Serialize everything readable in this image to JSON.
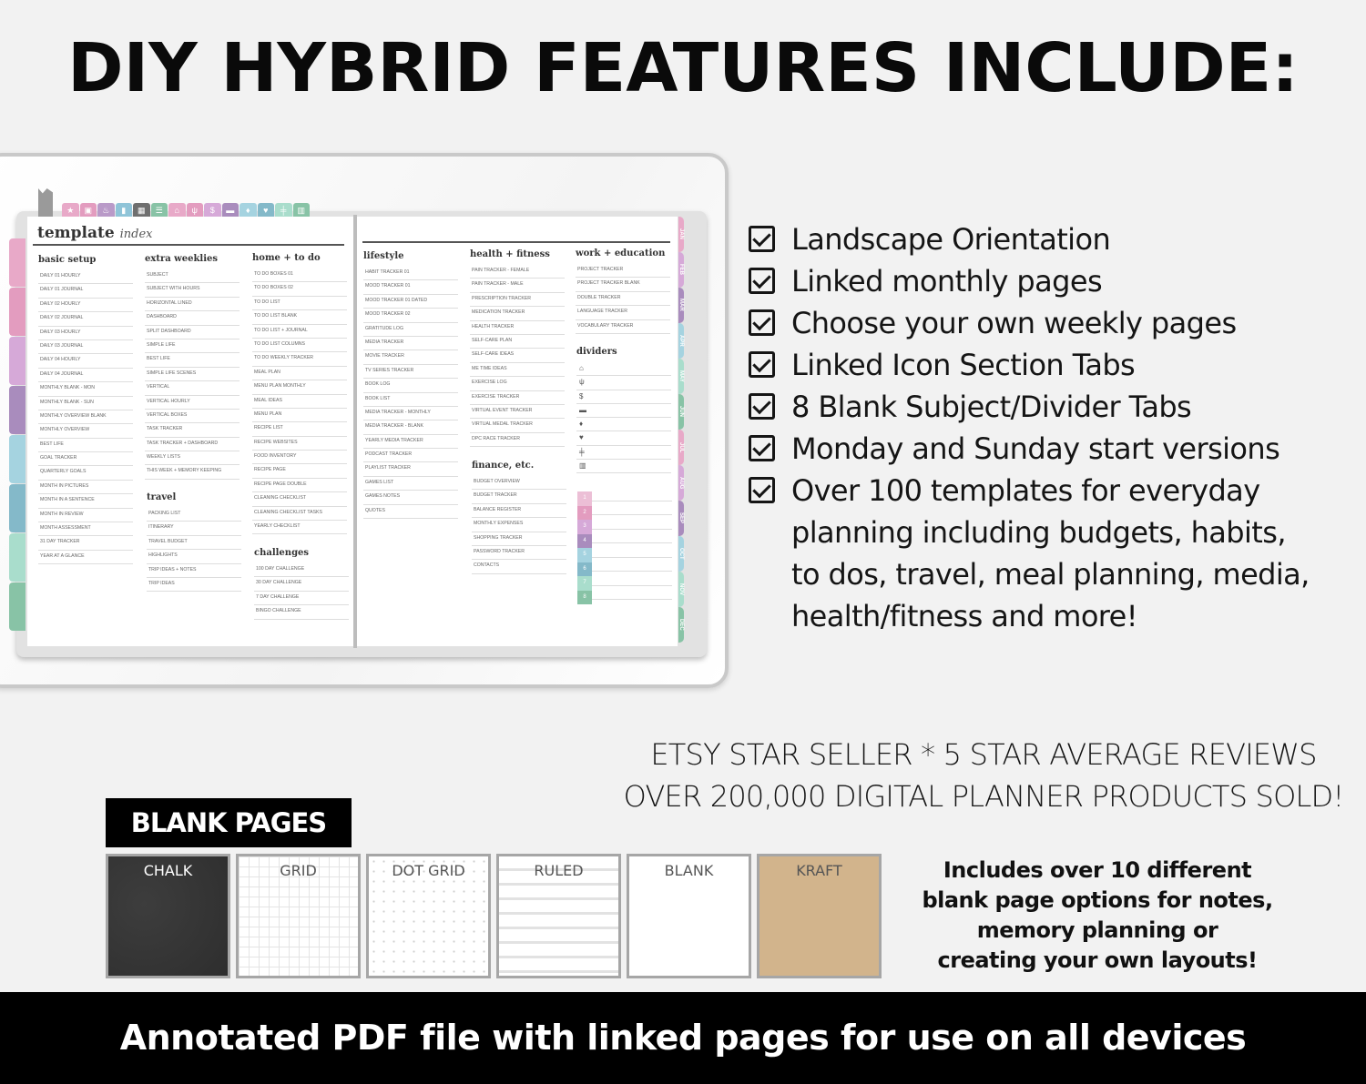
{
  "title": "DIY HYBRID FEATURES INCLUDE:",
  "colors": {
    "pink": "#e8a9c8",
    "rose": "#e39cbf",
    "lilac": "#d6a9d8",
    "purple": "#a98cbd",
    "blue": "#a5d3e0",
    "teal": "#84b9c9",
    "mint": "#a9ddcc",
    "green": "#88c3a6",
    "gray": "#6f6f6f"
  },
  "planner": {
    "title_bold": "template",
    "title_script": "index",
    "top_tabs": [
      {
        "icon": "star-icon",
        "glyph": "★",
        "color": "#e8a9c8"
      },
      {
        "icon": "calendar-icon",
        "glyph": "▣",
        "color": "#e39cbf"
      },
      {
        "icon": "cake-icon",
        "glyph": "♨",
        "color": "#b99ac8"
      },
      {
        "icon": "bookmark-icon",
        "glyph": "▮",
        "color": "#8fc4d8"
      },
      {
        "icon": "grid-icon",
        "glyph": "▦",
        "color": "#6f6f6f"
      },
      {
        "icon": "list-icon",
        "glyph": "☰",
        "color": "#88c3a6"
      },
      {
        "icon": "home-icon",
        "glyph": "⌂",
        "color": "#e8a9c8"
      },
      {
        "icon": "utensils-icon",
        "glyph": "ψ",
        "color": "#e39cbf"
      },
      {
        "icon": "dollar-icon",
        "glyph": "$",
        "color": "#d6a9d8"
      },
      {
        "icon": "folder-icon",
        "glyph": "▬",
        "color": "#a98cbd"
      },
      {
        "icon": "pin-icon",
        "glyph": "♦",
        "color": "#a5d3e0"
      },
      {
        "icon": "heart-icon",
        "glyph": "♥",
        "color": "#84b9c9"
      },
      {
        "icon": "dumbbell-icon",
        "glyph": "╪",
        "color": "#a9ddcc"
      },
      {
        "icon": "books-icon",
        "glyph": "▥",
        "color": "#88c3a6"
      }
    ],
    "side_tab_colors": [
      "#e8a9c8",
      "#e39cbf",
      "#d6a9d8",
      "#a98cbd",
      "#a5d3e0",
      "#84b9c9",
      "#a9ddcc",
      "#88c3a6"
    ],
    "months": [
      {
        "label": "JAN",
        "color": "#e8a9c8"
      },
      {
        "label": "FEB",
        "color": "#d6a9d8"
      },
      {
        "label": "MAR",
        "color": "#a98cbd"
      },
      {
        "label": "APR",
        "color": "#a5d3e0"
      },
      {
        "label": "MAY",
        "color": "#a9ddcc"
      },
      {
        "label": "JUN",
        "color": "#88c3a6"
      },
      {
        "label": "JUL",
        "color": "#e8a9c8"
      },
      {
        "label": "AUG",
        "color": "#d6a9d8"
      },
      {
        "label": "SEP",
        "color": "#a98cbd"
      },
      {
        "label": "OCT",
        "color": "#a5d3e0"
      },
      {
        "label": "NOV",
        "color": "#a9ddcc"
      },
      {
        "label": "DEC",
        "color": "#88c3a6"
      }
    ],
    "sections": {
      "basic_setup": {
        "heading": "basic setup",
        "items": [
          "Daily 01 Hourly",
          "Daily 01 Journal",
          "Daily 02 Hourly",
          "Daily 02 Journal",
          "Daily 03 Hourly",
          "Daily 03 Journal",
          "Daily 04 Hourly",
          "Daily 04 Journal",
          "Monthly Blank - Mon",
          "Monthly Blank - Sun",
          "Monthly Overview Blank",
          "Monthly Overview",
          "Best Life",
          "Goal Tracker",
          "Quarterly Goals",
          "Month in Pictures",
          "Month in a Sentence",
          "Month in Review",
          "Month Assessment",
          "31 Day Tracker",
          "Year at a Glance"
        ]
      },
      "extra_weeklies": {
        "heading": "extra weeklies",
        "items": [
          "Subject",
          "Subject with Hours",
          "Horizontal Lined",
          "Dashboard",
          "Split Dashboard",
          "Simple Life",
          "Best Life",
          "Simple Life Scenes",
          "Vertical",
          "Vertical Hourly",
          "Vertical Boxes",
          "Task Tracker",
          "Task Tracker + Dashboard",
          "Weekly Lists",
          "This Week + Memory Keeping"
        ]
      },
      "travel": {
        "heading": "travel",
        "items": [
          "Packing List",
          "Itinerary",
          "Travel Budget",
          "Highlights",
          "Trip Ideas + Notes",
          "Trip Ideas"
        ]
      },
      "home_todo": {
        "heading": "home + to do",
        "items": [
          "To Do Boxes 01",
          "To Do Boxes 02",
          "To Do List",
          "To Do List Blank",
          "To Do List + Journal",
          "To Do List Columns",
          "To Do Weekly Tracker",
          "Meal Plan",
          "Menu Plan Monthly",
          "Meal Ideas",
          "Menu Plan",
          "Recipe List",
          "Recipe Websites",
          "Food Inventory",
          "Recipe Page",
          "Recipe Page Double",
          "Cleaning Checklist",
          "Cleaning Checklist Tasks",
          "Yearly Checklist"
        ]
      },
      "challenges": {
        "heading": "challenges",
        "items": [
          "100 Day Challenge",
          "30 Day Challenge",
          "7 Day Challenge",
          "Bingo Challenge"
        ]
      },
      "lifestyle": {
        "heading": "lifestyle",
        "items": [
          "Habit Tracker 01",
          "Mood Tracker 01",
          "Mood Tracker 01 Dated",
          "Mood Tracker 02",
          "Gratitude Log",
          "Media Tracker",
          "Movie Tracker",
          "TV Series Tracker",
          "Book Log",
          "Book List",
          "Media Tracker - Monthly",
          "Media Tracker - Blank",
          "Yearly Media Tracker",
          "Podcast Tracker",
          "Playlist Tracker",
          "Games List",
          "Games Notes",
          "Quotes"
        ]
      },
      "health_fitness": {
        "heading": "health + fitness",
        "items": [
          "Pain Tracker - Female",
          "Pain Tracker - Male",
          "Prescription Tracker",
          "Medication Tracker",
          "Health Tracker",
          "Self-Care Plan",
          "Self-Care Ideas",
          "Me Time Ideas",
          "Exercise Log",
          "Exercise Tracker",
          "Virtual Event Tracker",
          "Virtual Medal Tracker",
          "DPC Race Tracker"
        ]
      },
      "finance": {
        "heading": "finance, etc.",
        "items": [
          "Budget Overview",
          "Budget Tracker",
          "Balance Register",
          "Monthly Expenses",
          "Shopping Tracker",
          "Password Tracker",
          "Contacts"
        ]
      },
      "work_education": {
        "heading": "work + education",
        "items": [
          "Project Tracker",
          "Project Tracker Blank",
          "Double Tracker",
          "Language Tracker",
          "Vocabulary Tracker"
        ]
      }
    },
    "dividers": {
      "heading": "dividers",
      "icons": [
        {
          "icon": "home-icon",
          "glyph": "⌂"
        },
        {
          "icon": "utensils-icon",
          "glyph": "ψ"
        },
        {
          "icon": "dollar-icon",
          "glyph": "$"
        },
        {
          "icon": "folder-icon",
          "glyph": "▬"
        },
        {
          "icon": "pin-icon",
          "glyph": "♦"
        },
        {
          "icon": "heart-icon",
          "glyph": "♥"
        },
        {
          "icon": "dumbbell-icon",
          "glyph": "╪"
        },
        {
          "icon": "books-icon",
          "glyph": "▥"
        }
      ],
      "numbers": [
        {
          "label": "1",
          "color": "#ecbfd6"
        },
        {
          "label": "2",
          "color": "#e39cbf"
        },
        {
          "label": "3",
          "color": "#d6a9d8"
        },
        {
          "label": "4",
          "color": "#a98cbd"
        },
        {
          "label": "5",
          "color": "#a5d3e0"
        },
        {
          "label": "6",
          "color": "#84b9c9"
        },
        {
          "label": "7",
          "color": "#a9ddcc"
        },
        {
          "label": "8",
          "color": "#88c3a6"
        }
      ]
    }
  },
  "features": [
    "Landscape Orientation",
    "Linked monthly pages",
    "Choose your own weekly pages",
    "Linked Icon Section Tabs",
    "8 Blank Subject/Divider Tabs",
    "Monday and Sunday start versions",
    "Over 100 templates for everyday planning including budgets, habits, to dos, travel, meal planning, media, health/fitness and more!"
  ],
  "etsy": {
    "line1": "ETSY STAR SELLER * 5 STAR AVERAGE REVIEWS",
    "line2": "OVER 200,000 DIGITAL PLANNER PRODUCTS SOLD!"
  },
  "blank_pages": {
    "label": "BLANK PAGES",
    "options": [
      "CHALK",
      "GRID",
      "DOT GRID",
      "RULED",
      "BLANK",
      "KRAFT"
    ],
    "description": [
      "Includes over 10 different",
      "blank page options for notes,",
      "memory planning or",
      "creating your own layouts!"
    ]
  },
  "footer": "Annotated PDF file with linked pages for use on all devices"
}
